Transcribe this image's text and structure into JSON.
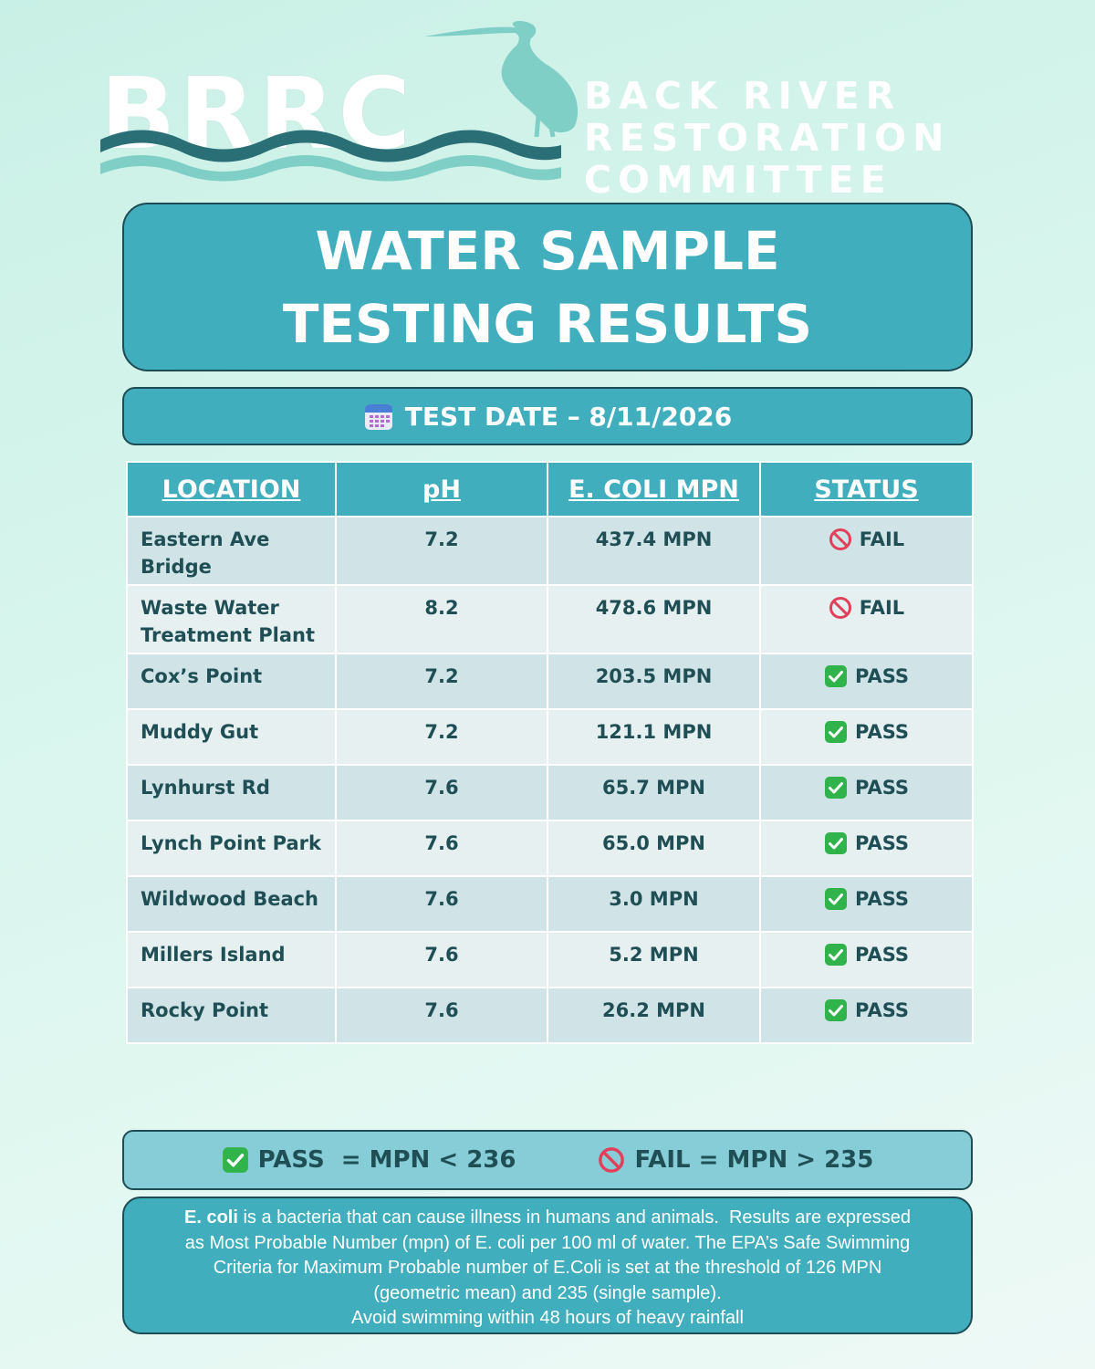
{
  "logo": {
    "letters": "BRRC",
    "org_lines": [
      "BACK RIVER",
      "RESTORATION",
      "COMMITTEE"
    ],
    "colors": {
      "wave_dark": "#2a6f76",
      "wave_light": "#7fcfc7",
      "heron": "#7fcfc7"
    }
  },
  "title": {
    "line1": "WATER SAMPLE",
    "line2": "TESTING RESULTS"
  },
  "test_date": {
    "icon": "calendar-icon",
    "label": "TEST DATE – 8/11/2026"
  },
  "table": {
    "headers": {
      "location": "LOCATION",
      "ph": "pH",
      "ecoli": "E. COLI MPN",
      "status": "STATUS"
    },
    "rows": [
      {
        "location": "Eastern Ave Bridge",
        "ph": "7.2",
        "ecoli": "437.4 MPN",
        "status": "FAIL",
        "icon": "prohibited-icon"
      },
      {
        "location": "Waste Water Treatment Plant",
        "ph": "8.2",
        "ecoli": "478.6 MPN",
        "status": "FAIL",
        "icon": "prohibited-icon"
      },
      {
        "location": "Cox’s Point",
        "ph": "7.2",
        "ecoli": "203.5 MPN",
        "status": "PASS",
        "icon": "check-icon"
      },
      {
        "location": "Muddy Gut",
        "ph": "7.2",
        "ecoli": "121.1 MPN",
        "status": "PASS",
        "icon": "check-icon"
      },
      {
        "location": "Lynhurst Rd",
        "ph": "7.6",
        "ecoli": "65.7 MPN",
        "status": "PASS",
        "icon": "check-icon"
      },
      {
        "location": "Lynch Point Park",
        "ph": "7.6",
        "ecoli": "65.0 MPN",
        "status": "PASS",
        "icon": "check-icon"
      },
      {
        "location": "Wildwood Beach",
        "ph": "7.6",
        "ecoli": "3.0 MPN",
        "status": "PASS",
        "icon": "check-icon"
      },
      {
        "location": "Millers Island",
        "ph": "7.6",
        "ecoli": "5.2 MPN",
        "status": "PASS",
        "icon": "check-icon"
      },
      {
        "location": "Rocky Point",
        "ph": "7.6",
        "ecoli": "26.2 MPN",
        "status": "PASS",
        "icon": "check-icon"
      }
    ]
  },
  "legend": {
    "pass": "PASS  = MPN < 236",
    "fail": "FAIL = MPN > 235"
  },
  "info": {
    "bold_term": "E. coli",
    "line1_rest": " is a bacteria that can cause illness in humans and animals.  Results are expressed",
    "line2": "as Most Probable Number (mpn) of E. coli per 100 ml of water. The EPA’s Safe Swimming",
    "line3": "Criteria for Maximum Probable number of E.Coli is set at the threshold of 126 MPN",
    "line4": "(geometric mean) and 235 (single sample).",
    "line5": "Avoid swimming within 48 hours of heavy rainfall"
  },
  "colors": {
    "accent": "#41aebe",
    "legend_bg": "#86cdd7",
    "row_odd": "#d0e4e8",
    "row_even": "#e6f0f1",
    "text_dark": "#1f4f55",
    "pass_green": "#2fb34a",
    "fail_red": "#e2405a"
  }
}
